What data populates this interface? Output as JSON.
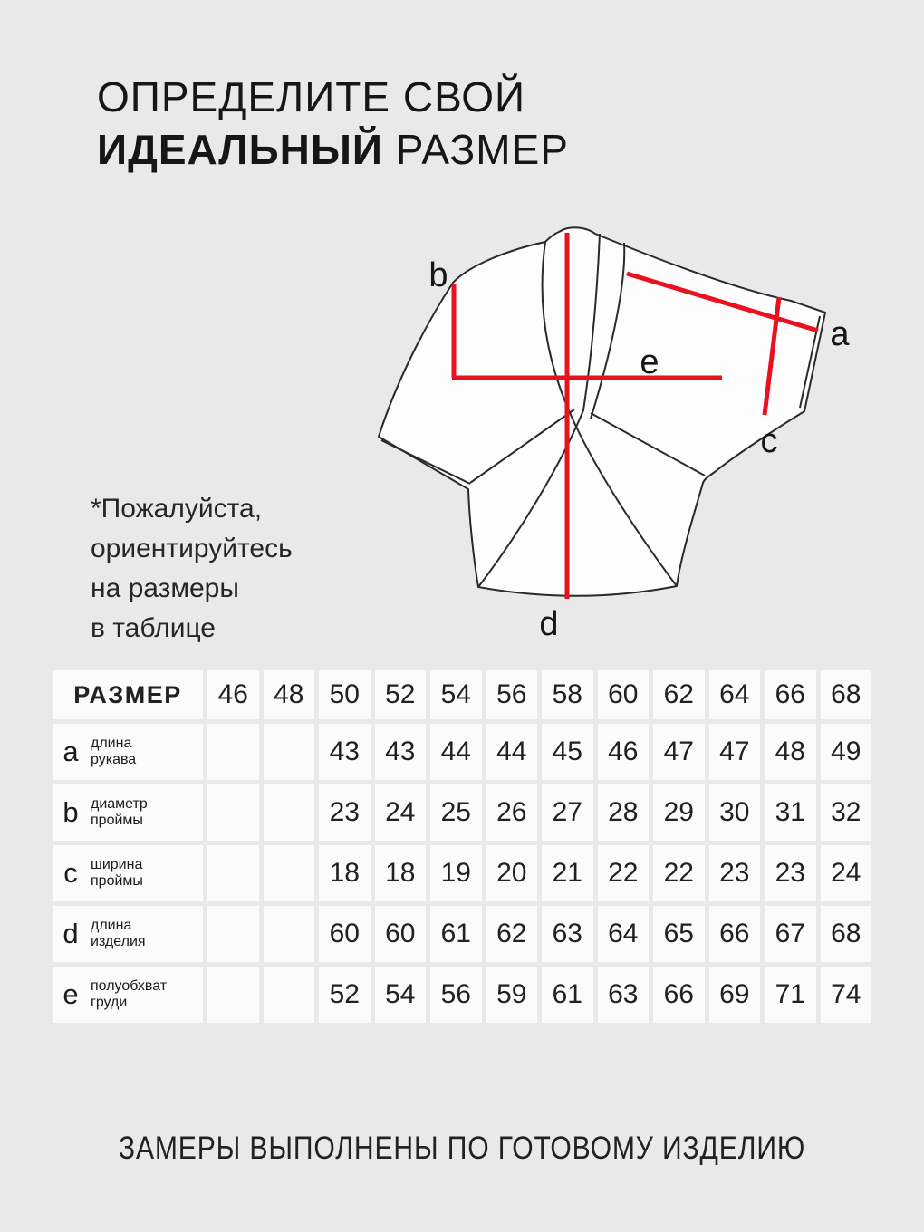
{
  "page": {
    "background": "#e9e9e9",
    "accent_red": "#e8121f",
    "text_color": "#1e1e1e"
  },
  "title": {
    "line1": "ОПРЕДЕЛИТЕ СВОЙ",
    "line2_bold": "ИДЕАЛЬНЫЙ",
    "line2_rest": " РАЗМЕР"
  },
  "note": {
    "lines": [
      "*Пожалуйста,",
      "ориентируйтесь",
      "на размеры",
      "в таблице"
    ]
  },
  "diagram": {
    "description": "garment-sketch-with-red-measurement-lines",
    "labels": {
      "a": "a",
      "b": "b",
      "c": "c",
      "d": "d",
      "e": "e"
    }
  },
  "size_table": {
    "header_label": "РАЗМЕР",
    "sizes": [
      "46",
      "48",
      "50",
      "52",
      "54",
      "56",
      "58",
      "60",
      "62",
      "64",
      "66",
      "68"
    ],
    "rows": [
      {
        "key": "a",
        "label_lines": [
          "длина",
          "рукава"
        ],
        "values": [
          "",
          "",
          "43",
          "43",
          "44",
          "44",
          "45",
          "46",
          "47",
          "47",
          "48",
          "49"
        ]
      },
      {
        "key": "b",
        "label_lines": [
          "диаметр",
          "проймы"
        ],
        "values": [
          "",
          "",
          "23",
          "24",
          "25",
          "26",
          "27",
          "28",
          "29",
          "30",
          "31",
          "32"
        ]
      },
      {
        "key": "c",
        "label_lines": [
          "ширина",
          "проймы"
        ],
        "values": [
          "",
          "",
          "18",
          "18",
          "19",
          "20",
          "21",
          "22",
          "22",
          "23",
          "23",
          "24"
        ]
      },
      {
        "key": "d",
        "label_lines": [
          "длина",
          "изделия"
        ],
        "values": [
          "",
          "",
          "60",
          "60",
          "61",
          "62",
          "63",
          "64",
          "65",
          "66",
          "67",
          "68"
        ]
      },
      {
        "key": "e",
        "label_lines": [
          "полуобхват",
          "груди"
        ],
        "values": [
          "",
          "",
          "52",
          "54",
          "56",
          "59",
          "61",
          "63",
          "66",
          "69",
          "71",
          "74"
        ]
      }
    ]
  },
  "footer": {
    "text": "ЗАМЕРЫ ВЫПОЛНЕНЫ ПО ГОТОВОМУ ИЗДЕЛИЮ"
  }
}
